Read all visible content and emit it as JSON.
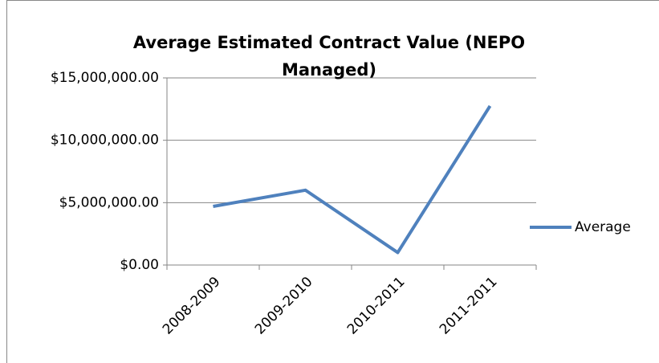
{
  "chart_data": {
    "type": "line",
    "title": "Average Estimated Contract Value (NEPO Managed)",
    "categories": [
      "2008-2009",
      "2009-2010",
      "2010-2011",
      "2011-2011"
    ],
    "series": [
      {
        "name": "Average",
        "color": "#4f81bd",
        "values": [
          4700000,
          6000000,
          1000000,
          12750000
        ]
      }
    ],
    "ylim": [
      0,
      15000000
    ],
    "yticks": [
      {
        "value": 0,
        "label": "$0.00"
      },
      {
        "value": 5000000,
        "label": "$5,000,000.00"
      },
      {
        "value": 10000000,
        "label": "$10,000,000.00"
      },
      {
        "value": 15000000,
        "label": "$15,000,000.00"
      }
    ],
    "grid": true,
    "legend": "right"
  }
}
